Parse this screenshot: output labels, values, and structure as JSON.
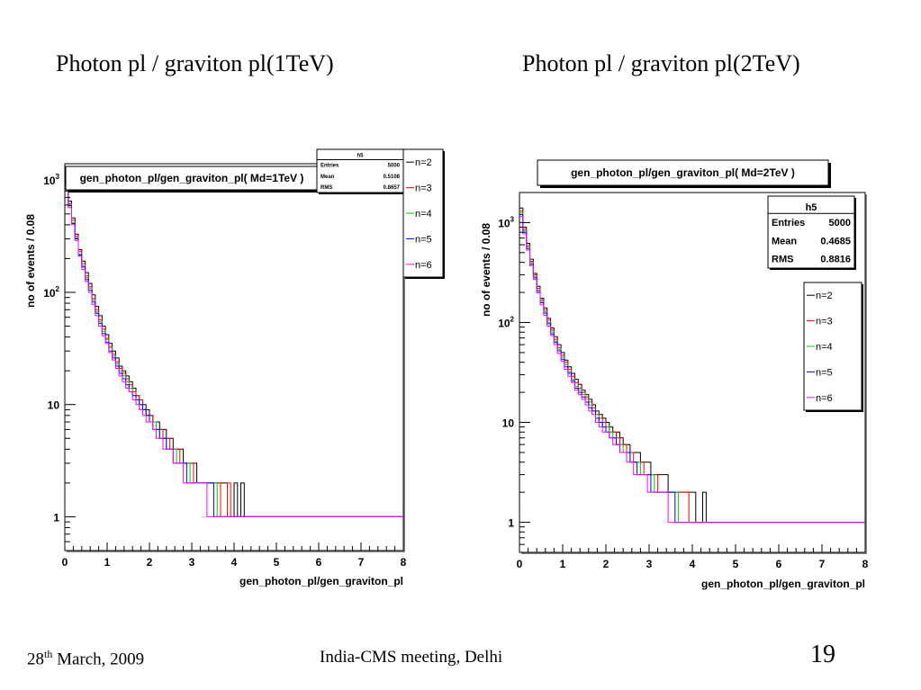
{
  "slide": {
    "title_left": "Photon pl / graviton pl(1TeV)",
    "title_right": "Photon pl / graviton pl(2TeV)",
    "footer_date_day": "28",
    "footer_date_sup": "th",
    "footer_date_rest": " March, 2009",
    "footer_meeting": "India-CMS meeting, Delhi",
    "footer_page": "19"
  },
  "series_colors": {
    "n=2": "#000000",
    "n=3": "#ff0000",
    "n=4": "#00cc00",
    "n=5": "#0000ff",
    "n=6": "#ff00ff"
  },
  "chart_data": [
    {
      "type": "line",
      "title": "gen_photon_pl/gen_graviton_pl( Md=1TeV )",
      "xlabel": "gen_photon_pl/gen_graviton_pl",
      "ylabel": "no of events / 0.08",
      "xlim": [
        0,
        8
      ],
      "ylim": [
        0.5,
        1400
      ],
      "yscale": "log",
      "x_ticks": [
        "0",
        "1",
        "2",
        "3",
        "4",
        "5",
        "6",
        "7",
        "8"
      ],
      "y_ticks": [
        {
          "value": 1,
          "base": "1",
          "exp": ""
        },
        {
          "value": 10,
          "base": "10",
          "exp": ""
        },
        {
          "value": 100,
          "base": "10",
          "exp": "2"
        },
        {
          "value": 1000,
          "base": "10",
          "exp": "3"
        }
      ],
      "bin_width": 0.08,
      "stats": {
        "name": "h5",
        "entries": "5000",
        "mean": "0.5108",
        "rms": "0.8657"
      },
      "legend_position": "top-right-outside",
      "series": [
        {
          "name": "n=2",
          "values": [
            920,
            650,
            460,
            330,
            240,
            190,
            150,
            120,
            95,
            75,
            62,
            50,
            42,
            35,
            30,
            26,
            22,
            20,
            18,
            16,
            14,
            12,
            11,
            10,
            9,
            8,
            7,
            7,
            6,
            6,
            5,
            5,
            4,
            4,
            4,
            3,
            3,
            3,
            3,
            2,
            2,
            2,
            2,
            2,
            2,
            2,
            2,
            2,
            1,
            1,
            2,
            1,
            2,
            1,
            1,
            1,
            1,
            1,
            1,
            1,
            1,
            1,
            1,
            1,
            1,
            1,
            1,
            1,
            1,
            1,
            1,
            1,
            1,
            1,
            1,
            1,
            1,
            1,
            1,
            1,
            1,
            1,
            1,
            1,
            1,
            1,
            1,
            1,
            1,
            1,
            1,
            1,
            1,
            1,
            1,
            1,
            1,
            1,
            1,
            1
          ]
        },
        {
          "name": "n=3",
          "values": [
            880,
            620,
            440,
            315,
            230,
            180,
            140,
            112,
            88,
            70,
            57,
            47,
            39,
            33,
            28,
            24,
            21,
            19,
            17,
            15,
            13,
            12,
            11,
            9,
            8,
            8,
            7,
            6,
            6,
            5,
            5,
            4,
            4,
            4,
            3,
            3,
            3,
            3,
            2,
            2,
            2,
            2,
            2,
            2,
            2,
            2,
            1,
            1,
            2,
            1,
            1,
            1,
            1,
            1,
            1,
            1,
            1,
            1,
            1,
            1,
            1,
            1,
            1,
            1,
            1,
            1,
            1,
            1,
            1,
            1,
            1,
            1,
            1,
            1,
            1,
            1,
            1,
            1,
            1,
            1,
            1,
            1,
            1,
            1,
            1,
            1,
            1,
            1,
            1,
            1,
            1,
            1,
            1,
            1,
            1,
            1,
            1,
            1,
            1,
            1
          ]
        },
        {
          "name": "n=4",
          "values": [
            860,
            600,
            420,
            305,
            220,
            172,
            135,
            108,
            85,
            67,
            55,
            45,
            38,
            32,
            27,
            23,
            20,
            18,
            16,
            14,
            12,
            11,
            10,
            9,
            8,
            7,
            7,
            6,
            5,
            5,
            4,
            4,
            4,
            3,
            3,
            3,
            3,
            2,
            2,
            2,
            2,
            2,
            2,
            2,
            2,
            1,
            1,
            1,
            1,
            1,
            1,
            1,
            1,
            1,
            1,
            1,
            1,
            1,
            1,
            1,
            1,
            1,
            1,
            1,
            1,
            1,
            1,
            1,
            1,
            1,
            1,
            1,
            1,
            1,
            1,
            1,
            1,
            1,
            1,
            1,
            1,
            1,
            1,
            1,
            1,
            1,
            1,
            1,
            1,
            1,
            1,
            1,
            1,
            1,
            1,
            1,
            1,
            1,
            1,
            1
          ]
        },
        {
          "name": "n=5",
          "values": [
            840,
            590,
            410,
            300,
            215,
            168,
            130,
            104,
            82,
            65,
            53,
            43,
            36,
            30,
            26,
            22,
            19,
            17,
            15,
            13,
            12,
            11,
            10,
            9,
            8,
            7,
            6,
            6,
            5,
            5,
            4,
            4,
            3,
            3,
            3,
            3,
            2,
            2,
            2,
            2,
            2,
            2,
            2,
            2,
            1,
            1,
            1,
            1,
            1,
            1,
            1,
            1,
            1,
            1,
            1,
            1,
            1,
            1,
            1,
            1,
            1,
            1,
            1,
            1,
            1,
            1,
            1,
            1,
            1,
            1,
            1,
            1,
            1,
            1,
            1,
            1,
            1,
            1,
            1,
            1,
            1,
            1,
            1,
            1,
            1,
            1,
            1,
            1,
            1,
            1,
            1,
            1,
            1,
            1,
            1,
            1,
            1,
            1,
            1,
            1
          ]
        },
        {
          "name": "n=6",
          "values": [
            820,
            570,
            400,
            290,
            210,
            160,
            125,
            100,
            78,
            62,
            50,
            41,
            35,
            29,
            25,
            21,
            18,
            16,
            14,
            13,
            11,
            10,
            9,
            8,
            7,
            7,
            6,
            5,
            5,
            4,
            4,
            4,
            3,
            3,
            3,
            2,
            2,
            2,
            2,
            2,
            2,
            2,
            1,
            1,
            1,
            1,
            1,
            1,
            1,
            1,
            1,
            1,
            1,
            1,
            1,
            1,
            1,
            1,
            1,
            1,
            1,
            1,
            1,
            1,
            1,
            1,
            1,
            1,
            1,
            1,
            1,
            1,
            1,
            1,
            1,
            1,
            1,
            1,
            1,
            1,
            1,
            1,
            1,
            1,
            1,
            1,
            1,
            1,
            1,
            1,
            1,
            1,
            1,
            1,
            1,
            1,
            1,
            1,
            1,
            1
          ]
        }
      ]
    },
    {
      "type": "line",
      "title": "gen_photon_pl/gen_graviton_pl( Md=2TeV )",
      "xlabel": "gen_photon_pl/gen_graviton_pl",
      "ylabel": "no of events / 0.08",
      "xlim": [
        0,
        8
      ],
      "ylim": [
        0.5,
        2000
      ],
      "yscale": "log",
      "x_ticks": [
        "0",
        "1",
        "2",
        "3",
        "4",
        "5",
        "6",
        "7",
        "8"
      ],
      "y_ticks": [
        {
          "value": 1,
          "base": "1",
          "exp": ""
        },
        {
          "value": 10,
          "base": "10",
          "exp": ""
        },
        {
          "value": 100,
          "base": "10",
          "exp": "2"
        },
        {
          "value": 1000,
          "base": "10",
          "exp": "3"
        }
      ],
      "bin_width": 0.08,
      "stats": {
        "name": "h5",
        "entries": "5000",
        "mean": "0.4685",
        "rms": "0.8816"
      },
      "legend_position": "top-right",
      "series": [
        {
          "name": "n=2",
          "values": [
            1400,
            900,
            620,
            430,
            310,
            230,
            175,
            140,
            110,
            88,
            72,
            60,
            50,
            42,
            36,
            31,
            27,
            24,
            21,
            19,
            17,
            15,
            13,
            12,
            11,
            10,
            9,
            8,
            8,
            7,
            6,
            6,
            5,
            5,
            5,
            4,
            4,
            4,
            3,
            3,
            3,
            3,
            3,
            2,
            2,
            2,
            2,
            2,
            2,
            2,
            2,
            1,
            1,
            2,
            1,
            1,
            1,
            1,
            1,
            1,
            1,
            1,
            1,
            1,
            1,
            1,
            1,
            1,
            1,
            1,
            1,
            1,
            1,
            1,
            1,
            1,
            1,
            1,
            1,
            1,
            1,
            1,
            1,
            1,
            1,
            1,
            1,
            1,
            1,
            1,
            1,
            1,
            1,
            1,
            1,
            1,
            1,
            1,
            1,
            1
          ]
        },
        {
          "name": "n=3",
          "values": [
            1300,
            860,
            590,
            410,
            300,
            220,
            168,
            134,
            105,
            84,
            68,
            56,
            47,
            40,
            34,
            29,
            25,
            22,
            20,
            18,
            16,
            14,
            12,
            11,
            10,
            9,
            8,
            8,
            7,
            6,
            6,
            5,
            5,
            4,
            4,
            4,
            3,
            3,
            3,
            3,
            2,
            2,
            2,
            2,
            2,
            2,
            2,
            2,
            2,
            1,
            1,
            1,
            1,
            1,
            1,
            1,
            1,
            1,
            1,
            1,
            1,
            1,
            1,
            1,
            1,
            1,
            1,
            1,
            1,
            1,
            1,
            1,
            1,
            1,
            1,
            1,
            1,
            1,
            1,
            1,
            1,
            1,
            1,
            1,
            1,
            1,
            1,
            1,
            1,
            1,
            1,
            1,
            1,
            1,
            1,
            1,
            1,
            1,
            1,
            1
          ]
        },
        {
          "name": "n=4",
          "values": [
            1250,
            830,
            570,
            400,
            290,
            212,
            162,
            128,
            100,
            80,
            65,
            54,
            45,
            38,
            32,
            27,
            23,
            21,
            19,
            17,
            15,
            13,
            12,
            10,
            9,
            9,
            8,
            7,
            6,
            6,
            5,
            5,
            4,
            4,
            4,
            3,
            3,
            3,
            3,
            2,
            2,
            2,
            2,
            2,
            2,
            2,
            1,
            1,
            1,
            1,
            1,
            1,
            1,
            1,
            1,
            1,
            1,
            1,
            1,
            1,
            1,
            1,
            1,
            1,
            1,
            1,
            1,
            1,
            1,
            1,
            1,
            1,
            1,
            1,
            1,
            1,
            1,
            1,
            1,
            1,
            1,
            1,
            1,
            1,
            1,
            1,
            1,
            1,
            1,
            1,
            1,
            1,
            1,
            1,
            1,
            1,
            1,
            1,
            1,
            1
          ]
        },
        {
          "name": "n=5",
          "values": [
            1200,
            800,
            550,
            385,
            280,
            205,
            158,
            124,
            97,
            77,
            63,
            52,
            43,
            36,
            31,
            26,
            22,
            20,
            18,
            16,
            14,
            13,
            11,
            10,
            9,
            8,
            7,
            7,
            6,
            5,
            5,
            5,
            4,
            4,
            3,
            3,
            3,
            3,
            2,
            2,
            2,
            2,
            2,
            2,
            2,
            1,
            1,
            1,
            1,
            1,
            1,
            1,
            1,
            1,
            1,
            1,
            1,
            1,
            1,
            1,
            1,
            1,
            1,
            1,
            1,
            1,
            1,
            1,
            1,
            1,
            1,
            1,
            1,
            1,
            1,
            1,
            1,
            1,
            1,
            1,
            1,
            1,
            1,
            1,
            1,
            1,
            1,
            1,
            1,
            1,
            1,
            1,
            1,
            1,
            1,
            1,
            1,
            1,
            1,
            1
          ]
        },
        {
          "name": "n=6",
          "values": [
            1150,
            770,
            530,
            370,
            270,
            198,
            150,
            118,
            92,
            74,
            60,
            49,
            41,
            34,
            29,
            25,
            21,
            19,
            17,
            15,
            13,
            12,
            10,
            9,
            8,
            8,
            7,
            6,
            6,
            5,
            5,
            4,
            4,
            3,
            3,
            3,
            3,
            2,
            2,
            2,
            2,
            2,
            2,
            1,
            1,
            1,
            1,
            1,
            1,
            1,
            1,
            1,
            1,
            1,
            1,
            1,
            1,
            1,
            1,
            1,
            1,
            1,
            1,
            1,
            1,
            1,
            1,
            1,
            1,
            1,
            1,
            1,
            1,
            1,
            1,
            1,
            1,
            1,
            1,
            1,
            1,
            1,
            1,
            1,
            1,
            1,
            1,
            1,
            1,
            1,
            1,
            1,
            1,
            1,
            1,
            1,
            1,
            1,
            1,
            1
          ]
        }
      ]
    }
  ]
}
